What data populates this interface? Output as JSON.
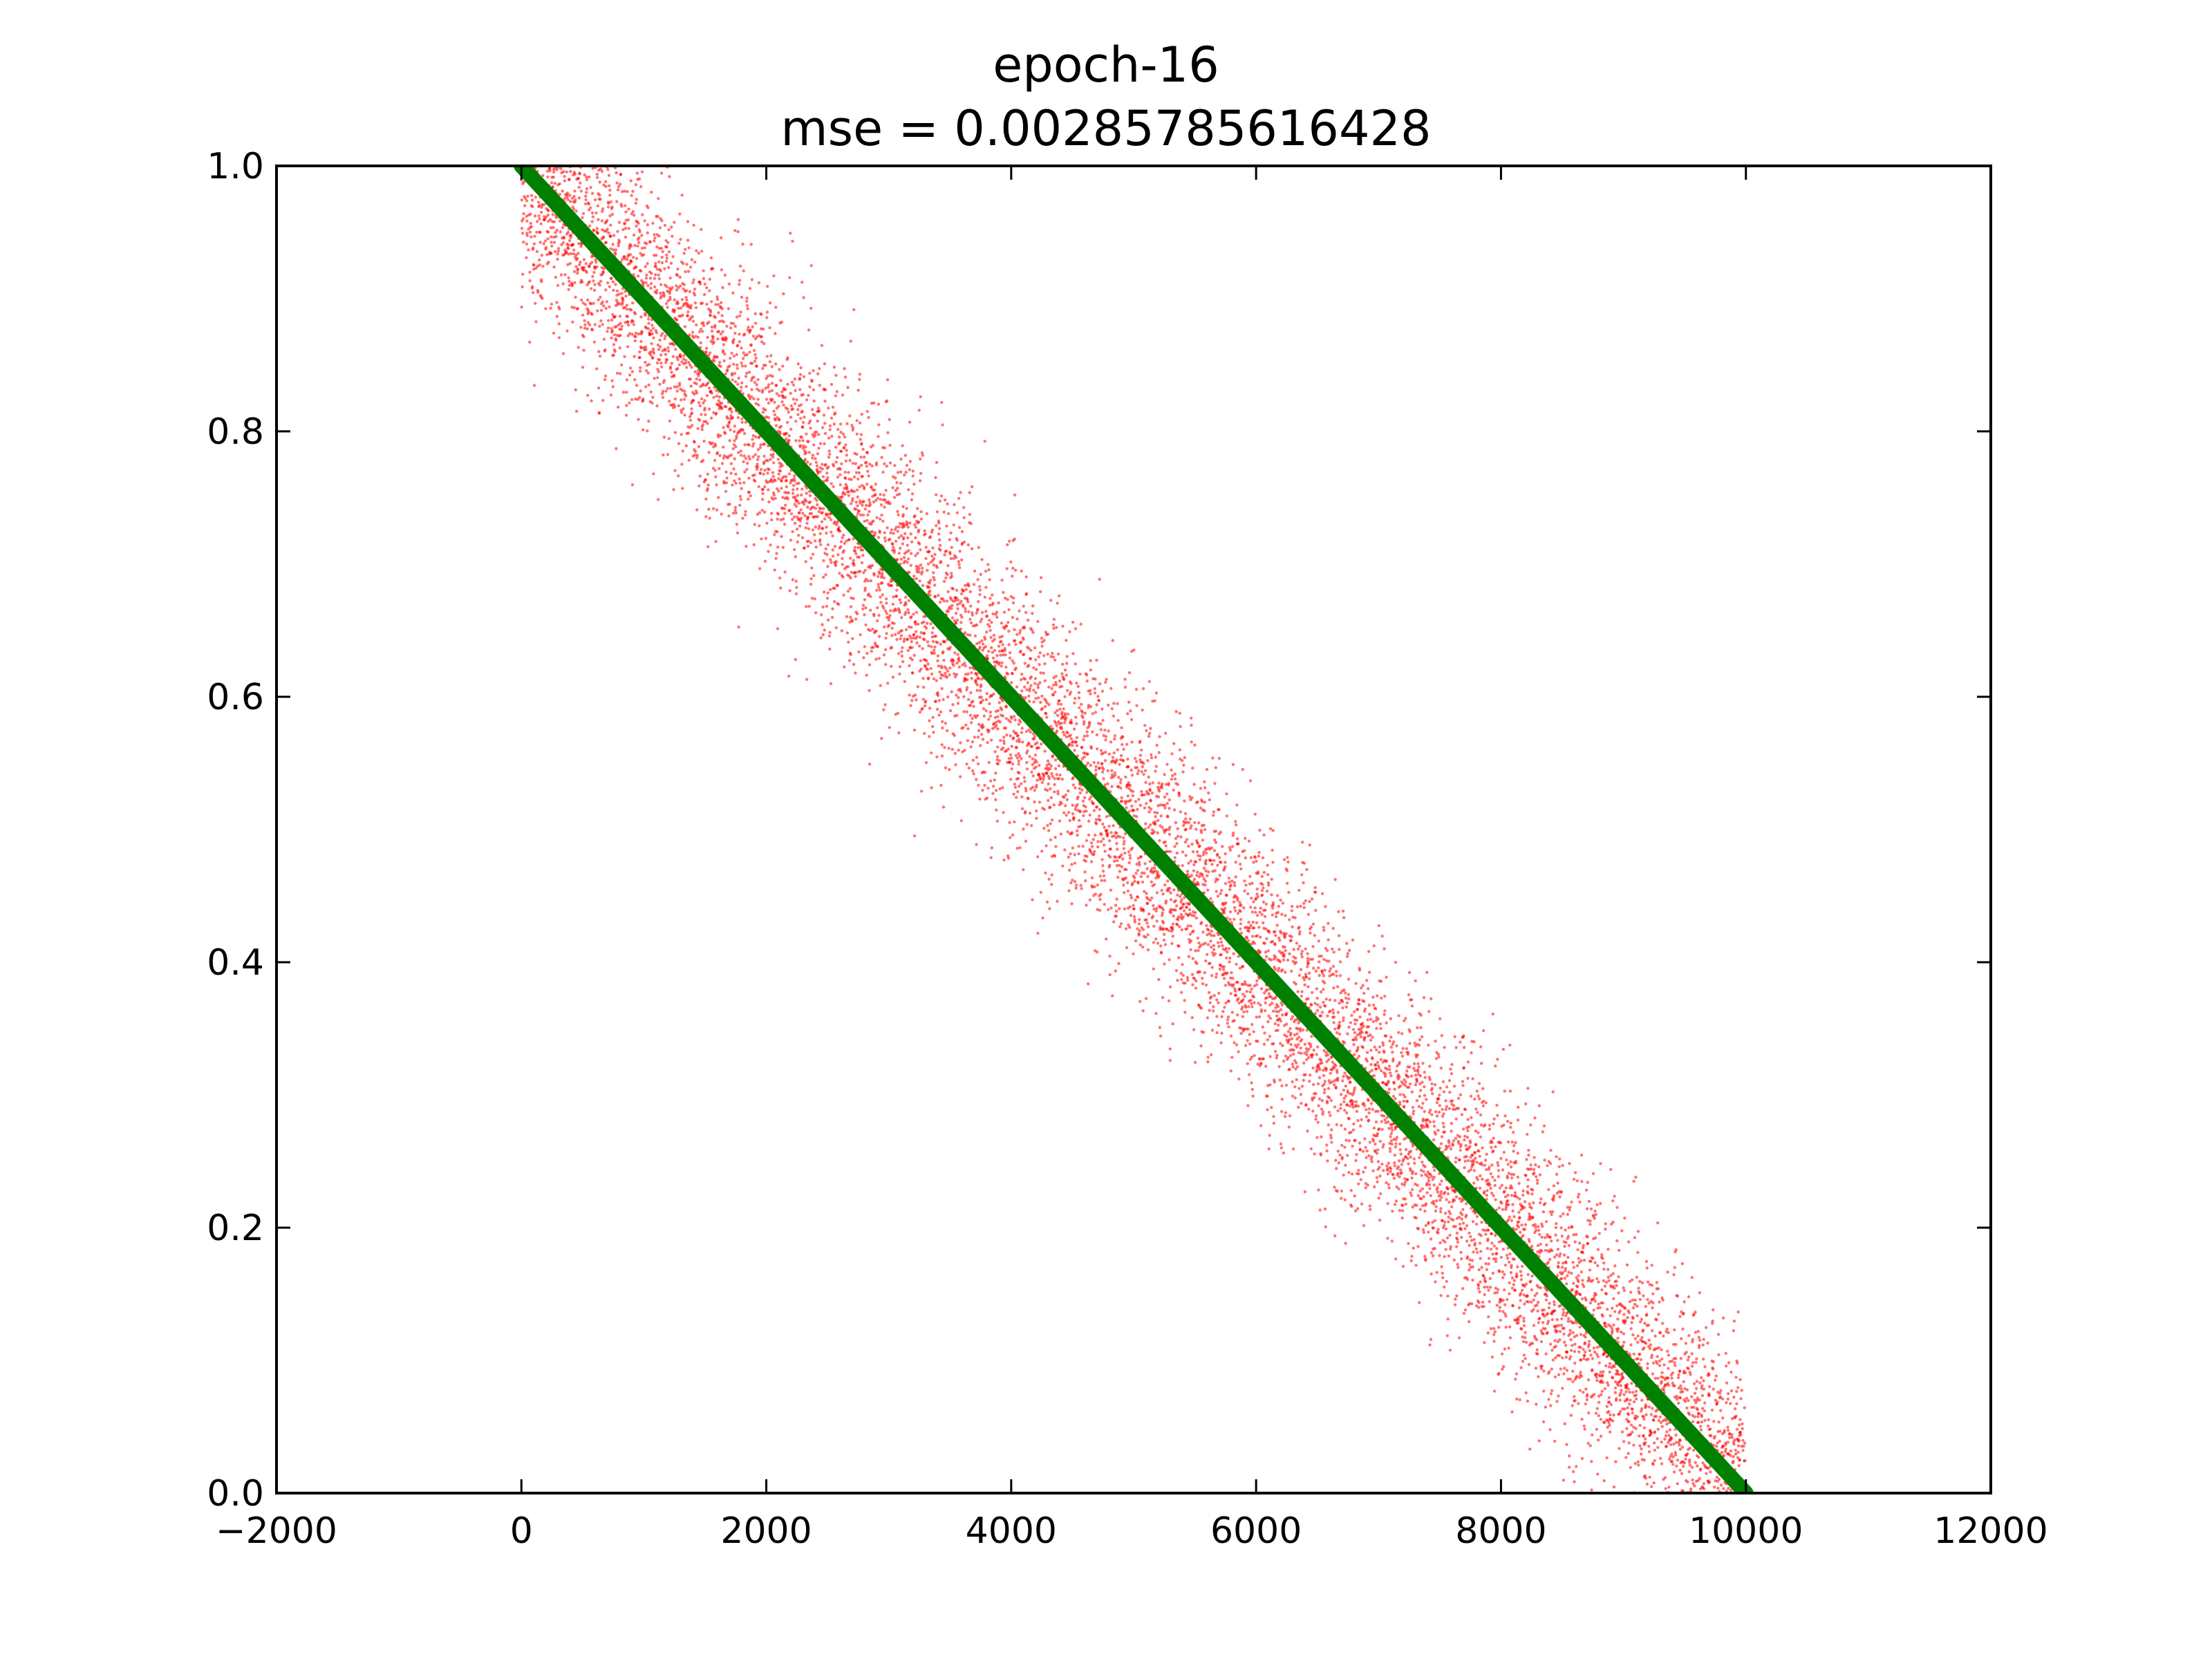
{
  "chart_data": {
    "type": "scatter",
    "title_lines": [
      "epoch-16",
      "mse = 0.00285785616428"
    ],
    "xlabel": "",
    "ylabel": "",
    "xlim": [
      -2000,
      12000
    ],
    "ylim": [
      0.0,
      1.0
    ],
    "xticks": [
      -2000,
      0,
      2000,
      4000,
      6000,
      8000,
      10000,
      12000
    ],
    "xtick_labels": [
      "−2000",
      "0",
      "2000",
      "4000",
      "6000",
      "8000",
      "10000",
      "12000"
    ],
    "yticks": [
      0.0,
      0.2,
      0.4,
      0.6,
      0.8,
      1.0
    ],
    "ytick_labels": [
      "0.0",
      "0.2",
      "0.4",
      "0.6",
      "0.8",
      "1.0"
    ],
    "grid": false,
    "legend": "none",
    "series": [
      {
        "kind": "scatter",
        "color": "#ff0000",
        "point_count": 10000,
        "x_range": [
          0,
          10000
        ],
        "trend": "y ≈ 1 − x/10000 with noise (std ≈ 0.05)"
      },
      {
        "kind": "line",
        "color": "#008000",
        "x": [
          0,
          10000
        ],
        "y": [
          1.0,
          0.0
        ]
      }
    ]
  }
}
